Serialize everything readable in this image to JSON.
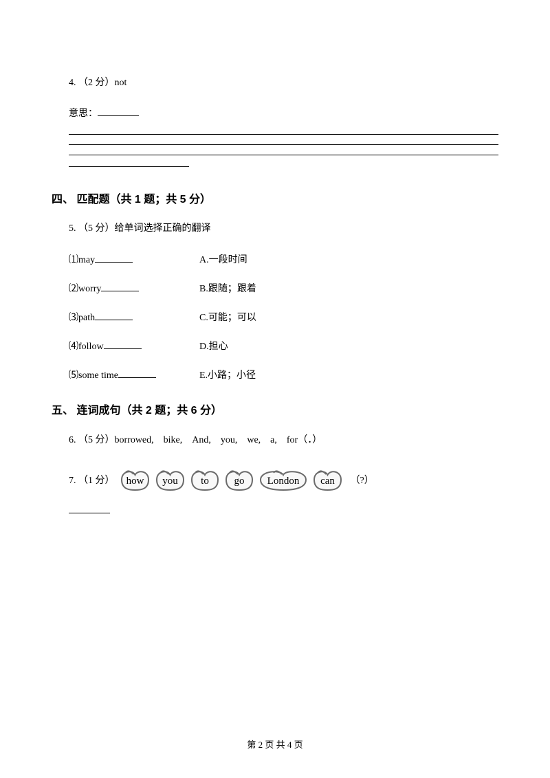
{
  "q4": {
    "label": "4. （2 分）not",
    "meaning_prefix": "意思：",
    "blank_lines": 4
  },
  "section4": {
    "title": "四、 匹配题（共 1 题；共 5 分）"
  },
  "q5": {
    "label": "5. （5 分）给单词选择正确的翻译",
    "items": [
      {
        "num": "⑴",
        "word": "may",
        "opt": "A.一段时间"
      },
      {
        "num": "⑵",
        "word": "worry",
        "opt": "B.跟随；跟着"
      },
      {
        "num": "⑶",
        "word": "path",
        "opt": "C.可能；可以"
      },
      {
        "num": "⑷",
        "word": "follow",
        "opt": "D.担心"
      },
      {
        "num": "⑸",
        "word": "some time",
        "opt": "E.小路；小径"
      }
    ]
  },
  "section5": {
    "title": "五、 连词成句（共 2 题；共 6 分）"
  },
  "q6": {
    "label": "6. （5 分）borrowed,　bike,　And,　you,　we,　a,　for（．）"
  },
  "q7": {
    "prefix": "7. （1 分）",
    "words": [
      "how",
      "you",
      "to",
      "go",
      "London",
      "can"
    ],
    "suffix": "（?）",
    "ball_fill": "#f8f8f8",
    "ball_stroke": "#6b6b6b",
    "ball_stroke_width": 2,
    "text_color": "#000000",
    "text_size": 15
  },
  "footer": {
    "text": "第 2 页 共 4 页"
  }
}
